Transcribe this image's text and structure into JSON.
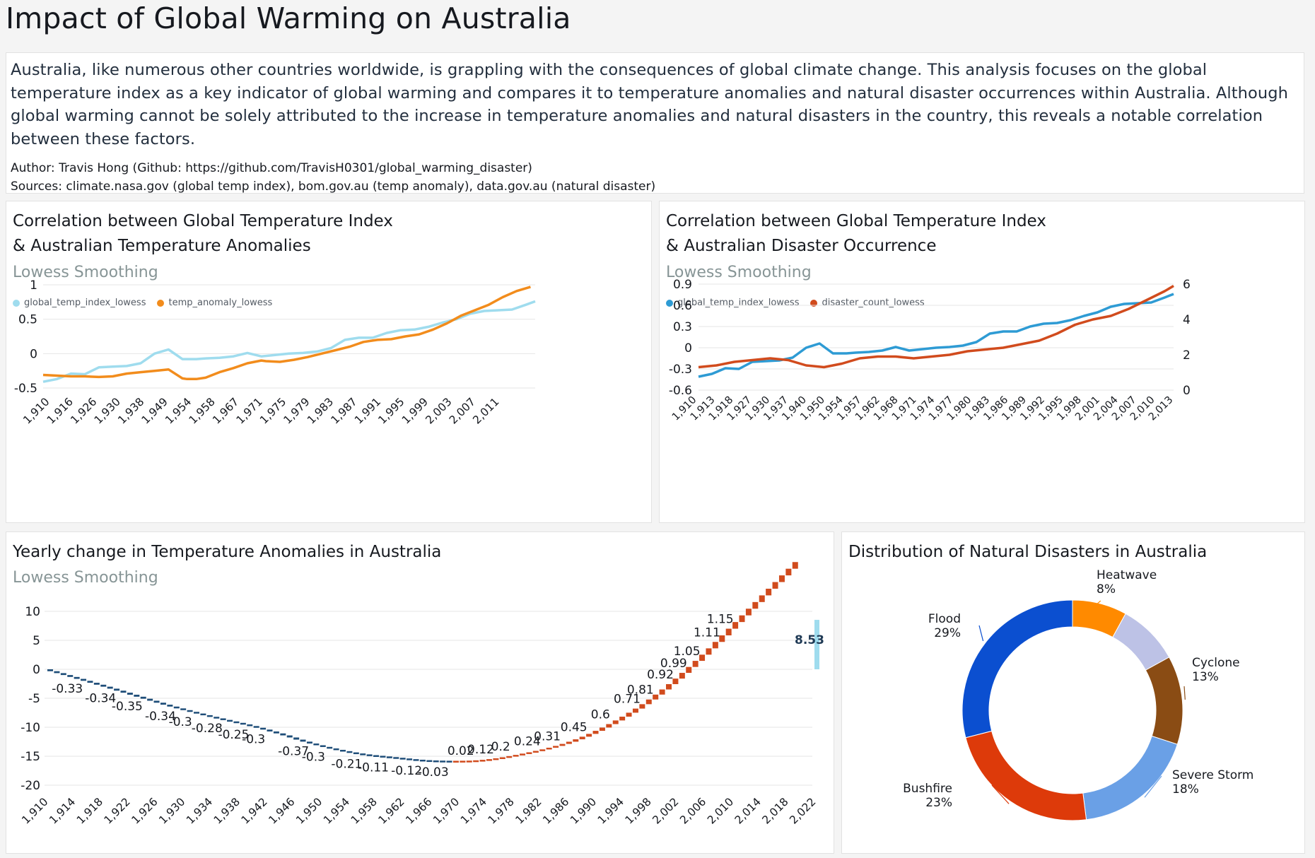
{
  "page": {
    "title": "Impact of Global Warming on Australia"
  },
  "intro": {
    "text": "Australia, like numerous other countries worldwide, is grappling with the consequences of global climate change. This analysis focuses on the global temperature index as a key indicator of global warming and compares it to temperature anomalies and natural disaster occurrences within Australia. Although global warming cannot be solely attributed to the increase in temperature anomalies and natural disasters in the country, this reveals a notable correlation between these factors.",
    "author": "Author: Travis Hong (Github: https://github.com/TravisH0301/global_warming_disaster)",
    "sources": "Sources: climate.nasa.gov (global temp index), bom.gov.au (temp anomaly), data.gov.au (natural disaster)"
  },
  "colors": {
    "light_blue": "#9fdcee",
    "orange": "#f28c1c",
    "blue": "#2e9bd4",
    "red_orange": "#d14b1d",
    "navy": "#1f4e79",
    "flood": "#0b4fd0",
    "bushfire": "#dd3a0a",
    "severe_storm": "#6aa0e6",
    "cyclone": "#8a4c14",
    "lavender": "#bdc2e6",
    "heatwave": "#ff8a00"
  },
  "chart_data": [
    {
      "id": "chart1",
      "type": "line",
      "title_line1": "Correlation between Global Temperature Index",
      "title_line2": "& Australian Temperature Anomalies",
      "subtitle": "Lowess Smoothing",
      "y_ticks": [
        "1",
        "0.5",
        "0",
        "-0.5"
      ],
      "ylim": [
        -0.5,
        1
      ],
      "xlim": [
        1910,
        2016
      ],
      "x_ticks": [
        "1,910",
        "1,916",
        "1,926",
        "1,930",
        "1,938",
        "1,949",
        "1,954",
        "1,958",
        "1,967",
        "1,971",
        "1,975",
        "1,979",
        "1,983",
        "1,987",
        "1,991",
        "1,995",
        "1,999",
        "2,003",
        "2,007",
        "2,011"
      ],
      "series": [
        {
          "name": "global_temp_index_lowess",
          "color": "#9fdcee",
          "x": [
            1910,
            1913,
            1916,
            1919,
            1922,
            1925,
            1928,
            1931,
            1934,
            1937,
            1940,
            1943,
            1945,
            1948,
            1951,
            1954,
            1957,
            1960,
            1963,
            1966,
            1969,
            1972,
            1975,
            1978,
            1981,
            1984,
            1987,
            1990,
            1993,
            1996,
            1999,
            2002,
            2005,
            2008,
            2011,
            2014,
            2016
          ],
          "y": [
            -0.41,
            -0.37,
            -0.29,
            -0.3,
            -0.2,
            -0.19,
            -0.18,
            -0.14,
            0.0,
            0.06,
            -0.08,
            -0.08,
            -0.07,
            -0.06,
            -0.04,
            0.01,
            -0.04,
            -0.02,
            0.0,
            0.01,
            0.03,
            0.08,
            0.2,
            0.23,
            0.23,
            0.3,
            0.34,
            0.35,
            0.39,
            0.45,
            0.5,
            0.58,
            0.62,
            0.63,
            0.64,
            0.71,
            0.76
          ]
        },
        {
          "name": "temp_anomaly_lowess",
          "color": "#f28c1c",
          "x": [
            1910,
            1913,
            1916,
            1919,
            1922,
            1925,
            1928,
            1931,
            1934,
            1937,
            1940,
            1941,
            1943,
            1945,
            1948,
            1951,
            1954,
            1957,
            1958,
            1961,
            1964,
            1967,
            1970,
            1973,
            1976,
            1979,
            1982,
            1985,
            1988,
            1991,
            1994,
            1997,
            2000,
            2003,
            2006,
            2009,
            2012,
            2015
          ],
          "y": [
            -0.31,
            -0.32,
            -0.33,
            -0.33,
            -0.34,
            -0.33,
            -0.29,
            -0.27,
            -0.25,
            -0.23,
            -0.36,
            -0.37,
            -0.37,
            -0.35,
            -0.27,
            -0.21,
            -0.14,
            -0.1,
            -0.11,
            -0.12,
            -0.09,
            -0.05,
            0.0,
            0.05,
            0.1,
            0.17,
            0.2,
            0.21,
            0.25,
            0.28,
            0.35,
            0.44,
            0.55,
            0.63,
            0.71,
            0.82,
            0.91,
            0.97
          ]
        }
      ]
    },
    {
      "id": "chart2",
      "type": "line",
      "title_line1": "Correlation between Global Temperature Index",
      "title_line2": "& Australian Disaster Occurrence",
      "subtitle": "Lowess Smoothing",
      "y_ticks_left": [
        "0.9",
        "0.6",
        "0.3",
        "0",
        "-0.3",
        "-0.6"
      ],
      "y_ticks_right": [
        "6",
        "4",
        "2",
        "0"
      ],
      "ylim_left": [
        -0.6,
        0.9
      ],
      "ylim_right": [
        0,
        6
      ],
      "xlim": [
        1910,
        2016
      ],
      "x_ticks": [
        "1,910",
        "1,913",
        "1,918",
        "1,927",
        "1,930",
        "1,937",
        "1,940",
        "1,950",
        "1,954",
        "1,957",
        "1,962",
        "1,968",
        "1,971",
        "1,974",
        "1,977",
        "1,980",
        "1,983",
        "1,986",
        "1,989",
        "1,992",
        "1,995",
        "1,998",
        "2,001",
        "2,004",
        "2,007",
        "2,010",
        "2,013"
      ],
      "series": [
        {
          "name": "global_temp_index_lowess",
          "axis": "left",
          "color": "#2e9bd4",
          "x": [
            1910,
            1913,
            1916,
            1919,
            1922,
            1925,
            1928,
            1931,
            1934,
            1937,
            1940,
            1943,
            1945,
            1948,
            1951,
            1954,
            1957,
            1960,
            1963,
            1966,
            1969,
            1972,
            1975,
            1978,
            1981,
            1984,
            1987,
            1990,
            1993,
            1996,
            1999,
            2002,
            2005,
            2008,
            2011,
            2014,
            2016
          ],
          "y": [
            -0.41,
            -0.37,
            -0.29,
            -0.3,
            -0.2,
            -0.19,
            -0.18,
            -0.14,
            0.0,
            0.06,
            -0.08,
            -0.08,
            -0.07,
            -0.06,
            -0.04,
            0.01,
            -0.04,
            -0.02,
            0.0,
            0.01,
            0.03,
            0.08,
            0.2,
            0.23,
            0.23,
            0.3,
            0.34,
            0.35,
            0.39,
            0.45,
            0.5,
            0.58,
            0.62,
            0.63,
            0.64,
            0.71,
            0.76
          ]
        },
        {
          "name": "disaster_count_lowess",
          "axis": "right",
          "color": "#d14b1d",
          "x": [
            1910,
            1914,
            1918,
            1922,
            1926,
            1930,
            1934,
            1938,
            1942,
            1946,
            1950,
            1954,
            1958,
            1962,
            1966,
            1970,
            1974,
            1978,
            1982,
            1986,
            1990,
            1994,
            1998,
            2002,
            2006,
            2010,
            2014,
            2016
          ],
          "y": [
            1.3,
            1.4,
            1.6,
            1.7,
            1.8,
            1.7,
            1.4,
            1.3,
            1.5,
            1.8,
            1.9,
            1.9,
            1.8,
            1.9,
            2.0,
            2.2,
            2.3,
            2.4,
            2.6,
            2.8,
            3.2,
            3.7,
            4.0,
            4.2,
            4.6,
            5.1,
            5.6,
            5.9
          ]
        }
      ]
    },
    {
      "id": "chart3",
      "type": "bar",
      "title": "Yearly change in Temperature Anomalies in Australia",
      "subtitle": "Lowess Smoothing",
      "y_ticks": [
        "10",
        "5",
        "0",
        "-5",
        "-10",
        "-15",
        "-20"
      ],
      "ylim": [
        -20,
        10
      ],
      "xlim": [
        1910,
        2025
      ],
      "x_ticks": [
        "1,910",
        "1,914",
        "1,918",
        "1,922",
        "1,926",
        "1,930",
        "1,934",
        "1,938",
        "1,942",
        "1,946",
        "1,950",
        "1,954",
        "1,958",
        "1,962",
        "1,966",
        "1,970",
        "1,974",
        "1,978",
        "1,982",
        "1,986",
        "1,990",
        "1,994",
        "1,998",
        "2,002",
        "2,006",
        "2,010",
        "2,014",
        "2,018",
        "2,022"
      ],
      "total_label": "8.53",
      "negative_labels": [
        {
          "x": 1913,
          "label": "-0.33"
        },
        {
          "x": 1918,
          "label": "-0.34"
        },
        {
          "x": 1922,
          "label": "-0.35"
        },
        {
          "x": 1927,
          "label": "-0.34"
        },
        {
          "x": 1930,
          "label": "-0.3"
        },
        {
          "x": 1934,
          "label": "-0.28"
        },
        {
          "x": 1938,
          "label": "-0.25"
        },
        {
          "x": 1941,
          "label": "-0.3"
        },
        {
          "x": 1947,
          "label": "-0.37"
        },
        {
          "x": 1950,
          "label": "-0.3"
        },
        {
          "x": 1955,
          "label": "-0.21"
        },
        {
          "x": 1959,
          "label": "-0.11"
        },
        {
          "x": 1964,
          "label": "-0.12"
        },
        {
          "x": 1968,
          "label": "-0.03"
        }
      ],
      "positive_labels": [
        {
          "x": 1973,
          "label": "0.02"
        },
        {
          "x": 1976,
          "label": "0.12"
        },
        {
          "x": 1979,
          "label": "0.2"
        },
        {
          "x": 1983,
          "label": "0.24"
        },
        {
          "x": 1986,
          "label": "0.31"
        },
        {
          "x": 1990,
          "label": "0.45"
        },
        {
          "x": 1994,
          "label": "0.6"
        },
        {
          "x": 1998,
          "label": "0.71"
        },
        {
          "x": 2000,
          "label": "0.81"
        },
        {
          "x": 2003,
          "label": "0.92"
        },
        {
          "x": 2005,
          "label": "0.99"
        },
        {
          "x": 2007,
          "label": "1.05"
        },
        {
          "x": 2010,
          "label": "1.11"
        },
        {
          "x": 2012,
          "label": "1.15"
        }
      ]
    },
    {
      "id": "chart4",
      "type": "pie",
      "title": "Distribution of Natural Disasters in Australia",
      "slices": [
        {
          "label": "Heatwave",
          "pct": "8%",
          "value": 8,
          "color": "#ff8a00",
          "labelled": true
        },
        {
          "label": "",
          "pct": "",
          "value": 9,
          "color": "#bdc2e6",
          "labelled": false
        },
        {
          "label": "Cyclone",
          "pct": "13%",
          "value": 13,
          "color": "#8a4c14",
          "labelled": true
        },
        {
          "label": "Severe Storm",
          "pct": "18%",
          "value": 18,
          "color": "#6aa0e6",
          "labelled": true
        },
        {
          "label": "Bushfire",
          "pct": "23%",
          "value": 23,
          "color": "#dd3a0a",
          "labelled": true
        },
        {
          "label": "Flood",
          "pct": "29%",
          "value": 29,
          "color": "#0b4fd0",
          "labelled": true
        }
      ]
    }
  ]
}
